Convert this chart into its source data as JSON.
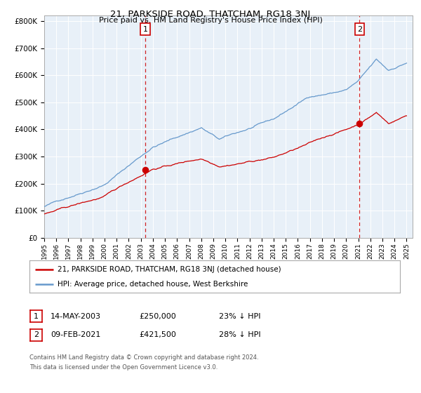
{
  "title1": "21, PARKSIDE ROAD, THATCHAM, RG18 3NJ",
  "title2": "Price paid vs. HM Land Registry's House Price Index (HPI)",
  "legend_line1": "21, PARKSIDE ROAD, THATCHAM, RG18 3NJ (detached house)",
  "legend_line2": "HPI: Average price, detached house, West Berkshire",
  "annotation1_label": "1",
  "annotation1_date": "14-MAY-2003",
  "annotation1_price": "£250,000",
  "annotation1_hpi": "23% ↓ HPI",
  "annotation1_year": 2003.37,
  "annotation1_value": 250000,
  "annotation2_label": "2",
  "annotation2_date": "09-FEB-2021",
  "annotation2_price": "£421,500",
  "annotation2_hpi": "28% ↓ HPI",
  "annotation2_year": 2021.11,
  "annotation2_value": 421500,
  "footer1": "Contains HM Land Registry data © Crown copyright and database right 2024.",
  "footer2": "This data is licensed under the Open Government Licence v3.0.",
  "ylim": [
    0,
    820000
  ],
  "bg_color": "#e8f0f8",
  "red_color": "#cc0000",
  "blue_color": "#6699cc",
  "grid_color": "#ffffff"
}
